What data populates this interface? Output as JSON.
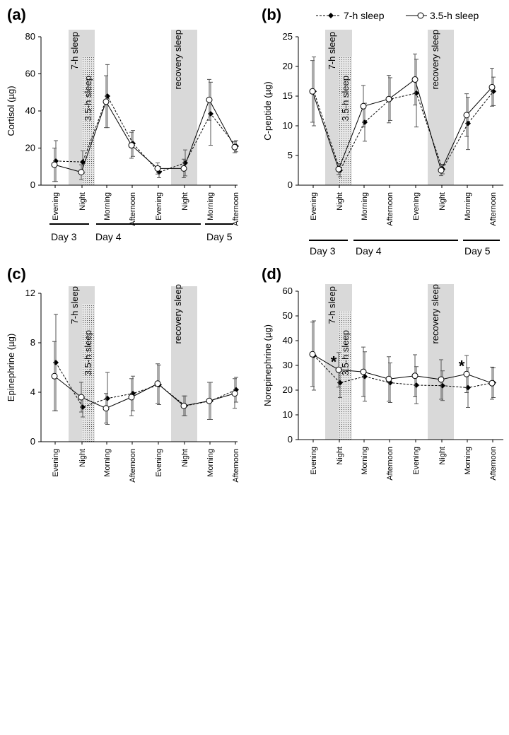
{
  "legend": {
    "series": [
      {
        "name": "7-h sleep",
        "marker": "diamond",
        "dash": true
      },
      {
        "name": "3.5-h sleep",
        "marker": "circle",
        "dash": false
      }
    ]
  },
  "labels": {
    "seven_h": "7-h sleep",
    "three_five_h": "3.5-h sleep",
    "recovery": "recovery sleep"
  },
  "days": [
    "Day 3",
    "Day 4",
    "Day 5"
  ],
  "colors": {
    "band": "#d9d9d9",
    "axis": "#000000"
  },
  "chart_data": [
    {
      "type": "line",
      "panel": "(a)",
      "ylabel": "Cortisol (µg)",
      "ylim": [
        0,
        80
      ],
      "yticks": [
        0,
        20,
        40,
        60,
        80
      ],
      "categories": [
        "Evening",
        "Night",
        "Morning",
        "Afternoon",
        "Evening",
        "Night",
        "Morning",
        "Afternoon"
      ],
      "series": [
        {
          "name": "7-h sleep",
          "values": [
            13,
            12.5,
            48,
            22.5,
            7,
            12,
            38.5,
            21
          ],
          "errors": [
            11,
            6,
            17,
            7,
            3,
            7,
            17,
            3
          ]
        },
        {
          "name": "3.5-h sleep",
          "values": [
            11,
            7,
            45,
            21.5,
            9,
            9,
            46,
            20.5
          ],
          "errors": [
            9,
            4,
            14,
            7,
            3,
            5,
            11,
            3
          ]
        }
      ],
      "annotations": []
    },
    {
      "type": "line",
      "panel": "(b)",
      "ylabel": "C-peptide (µg)",
      "ylim": [
        0,
        25
      ],
      "yticks": [
        0,
        5,
        10,
        15,
        20,
        25
      ],
      "categories": [
        "Evening",
        "Night",
        "Morning",
        "Afternoon",
        "Evening",
        "Night",
        "Morning",
        "Afternoon"
      ],
      "series": [
        {
          "name": "7-h sleep",
          "values": [
            15.8,
            2.5,
            10.6,
            14.5,
            15.5,
            2.7,
            10.4,
            15.8
          ],
          "errors": [
            5.8,
            1.1,
            3.2,
            3.6,
            5.7,
            0.8,
            4.4,
            2.4
          ]
        },
        {
          "name": "3.5-h sleep",
          "values": [
            15.8,
            2.7,
            13.3,
            14.5,
            17.8,
            2.5,
            11.8,
            16.5
          ],
          "errors": [
            5.2,
            0.9,
            3.5,
            4.0,
            4.3,
            0.9,
            3.6,
            3.2
          ]
        }
      ],
      "annotations": []
    },
    {
      "type": "line",
      "panel": "(c)",
      "ylabel": "Epinephrine (µg)",
      "ylim": [
        0,
        12
      ],
      "yticks": [
        0,
        4,
        8,
        12
      ],
      "categories": [
        "Evening",
        "Night",
        "Morning",
        "Afternoon",
        "Evening",
        "Night",
        "Morning",
        "Afternoon"
      ],
      "series": [
        {
          "name": "7-h sleep",
          "values": [
            6.4,
            2.8,
            3.5,
            3.9,
            4.6,
            2.9,
            3.3,
            4.2
          ],
          "errors": [
            3.9,
            0.8,
            2.1,
            1.4,
            1.6,
            0.8,
            1.5,
            1.0
          ]
        },
        {
          "name": "3.5-h sleep",
          "values": [
            5.3,
            3.6,
            2.7,
            3.6,
            4.7,
            2.9,
            3.3,
            3.9
          ],
          "errors": [
            2.8,
            1.2,
            1.2,
            1.5,
            1.6,
            0.8,
            1.5,
            1.2
          ]
        }
      ],
      "annotations": []
    },
    {
      "type": "line",
      "panel": "(d)",
      "ylabel": "Norepinephrine (µg)",
      "ylim": [
        0,
        60
      ],
      "yticks": [
        0,
        10,
        20,
        30,
        40,
        50,
        60
      ],
      "categories": [
        "Evening",
        "Night",
        "Morning",
        "Afternoon",
        "Evening",
        "Night",
        "Morning",
        "Afternoon"
      ],
      "series": [
        {
          "name": "7-h sleep",
          "values": [
            34,
            23,
            25.5,
            23,
            22,
            21.8,
            21,
            23
          ],
          "errors": [
            14,
            6,
            10,
            8,
            7.5,
            6,
            8,
            6
          ]
        },
        {
          "name": "3.5-h sleep",
          "values": [
            34.5,
            28.2,
            27.4,
            24.5,
            25.8,
            24.3,
            26.5,
            22.8
          ],
          "errors": [
            13,
            7,
            10,
            9,
            8.5,
            8,
            7.5,
            6.5
          ]
        }
      ],
      "annotations": [
        {
          "category_index": 1,
          "text": "*"
        },
        {
          "category_index": 6,
          "text": "*"
        }
      ]
    }
  ]
}
